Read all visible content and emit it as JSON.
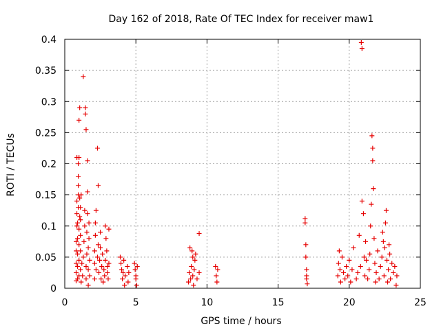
{
  "chart_data": {
    "type": "scatter",
    "title": "Day 162 of 2018, Rate Of TEC Index for receiver maw1",
    "xlabel": "GPS time / hours",
    "ylabel": "ROTI / TECUs",
    "xlim": [
      0,
      25
    ],
    "ylim": [
      0,
      0.4
    ],
    "xticks": [
      0,
      5,
      10,
      15,
      20,
      25
    ],
    "xtick_labels": [
      "0",
      "5",
      "10",
      "15",
      "20",
      "25"
    ],
    "yticks": [
      0,
      0.05,
      0.1,
      0.15,
      0.2,
      0.25,
      0.3,
      0.35,
      0.4
    ],
    "ytick_labels": [
      "0",
      "0.05",
      "0.1",
      "0.15",
      "0.2",
      "0.25",
      "0.3",
      "0.35",
      "0.4"
    ],
    "grid": true,
    "marker": "plus",
    "color": "#e60000",
    "series": [
      {
        "name": "ROTI",
        "points": [
          [
            0.8,
            0.012
          ],
          [
            0.8,
            0.025
          ],
          [
            0.8,
            0.04
          ],
          [
            0.8,
            0.06
          ],
          [
            0.8,
            0.075
          ],
          [
            0.85,
            0.1
          ],
          [
            0.85,
            0.12
          ],
          [
            0.85,
            0.14
          ],
          [
            0.85,
            0.21
          ],
          [
            0.9,
            0.015
          ],
          [
            0.9,
            0.035
          ],
          [
            0.9,
            0.055
          ],
          [
            0.9,
            0.08
          ],
          [
            0.9,
            0.105
          ],
          [
            0.95,
            0.13
          ],
          [
            0.95,
            0.15
          ],
          [
            0.95,
            0.165
          ],
          [
            0.95,
            0.18
          ],
          [
            0.95,
            0.2
          ],
          [
            1.0,
            0.02
          ],
          [
            1.0,
            0.045
          ],
          [
            1.0,
            0.07
          ],
          [
            1.0,
            0.095
          ],
          [
            1.0,
            0.21
          ],
          [
            1.0,
            0.27
          ],
          [
            1.05,
            0.29
          ],
          [
            1.05,
            0.115
          ],
          [
            1.05,
            0.145
          ],
          [
            1.1,
            0.03
          ],
          [
            1.1,
            0.06
          ],
          [
            1.1,
            0.085
          ],
          [
            1.1,
            0.11
          ],
          [
            1.1,
            0.13
          ],
          [
            1.15,
            0.15
          ],
          [
            1.15,
            0.01
          ],
          [
            1.2,
            0.04
          ],
          [
            1.25,
            0.02
          ],
          [
            1.3,
            0.34
          ],
          [
            1.3,
            0.05
          ],
          [
            1.35,
            0.075
          ],
          [
            1.4,
            0.1
          ],
          [
            1.4,
            0.125
          ],
          [
            1.45,
            0.28
          ],
          [
            1.45,
            0.29
          ],
          [
            1.5,
            0.255
          ],
          [
            1.5,
            0.015
          ],
          [
            1.5,
            0.035
          ],
          [
            1.55,
            0.055
          ],
          [
            1.55,
            0.09
          ],
          [
            1.6,
            0.12
          ],
          [
            1.6,
            0.155
          ],
          [
            1.6,
            0.205
          ],
          [
            1.65,
            0.005
          ],
          [
            1.65,
            0.03
          ],
          [
            1.65,
            0.065
          ],
          [
            1.7,
            0.08
          ],
          [
            1.7,
            0.105
          ],
          [
            1.75,
            0.045
          ],
          [
            1.75,
            0.02
          ],
          [
            2.1,
            0.015
          ],
          [
            2.1,
            0.04
          ],
          [
            2.1,
            0.06
          ],
          [
            2.15,
            0.085
          ],
          [
            2.15,
            0.105
          ],
          [
            2.2,
            0.125
          ],
          [
            2.2,
            0.03
          ],
          [
            2.3,
            0.05
          ],
          [
            2.3,
            0.225
          ],
          [
            2.35,
            0.165
          ],
          [
            2.35,
            0.07
          ],
          [
            2.4,
            0.025
          ],
          [
            2.45,
            0.045
          ],
          [
            2.5,
            0.09
          ],
          [
            2.5,
            0.065
          ],
          [
            2.55,
            0.015
          ],
          [
            2.6,
            0.035
          ],
          [
            2.65,
            0.055
          ],
          [
            2.7,
            0.01
          ],
          [
            2.75,
            0.03
          ],
          [
            2.8,
            0.02
          ],
          [
            2.85,
            0.045
          ],
          [
            2.85,
            0.1
          ],
          [
            2.9,
            0.08
          ],
          [
            2.95,
            0.06
          ],
          [
            3.0,
            0.035
          ],
          [
            3.0,
            0.025
          ],
          [
            3.05,
            0.015
          ],
          [
            3.1,
            0.04
          ],
          [
            3.1,
            0.095
          ],
          [
            3.9,
            0.05
          ],
          [
            3.95,
            0.04
          ],
          [
            4.0,
            0.03
          ],
          [
            4.05,
            0.015
          ],
          [
            4.1,
            0.025
          ],
          [
            4.15,
            0.045
          ],
          [
            4.2,
            0.005
          ],
          [
            4.25,
            0.02
          ],
          [
            4.4,
            0.035
          ],
          [
            4.45,
            0.01
          ],
          [
            4.5,
            0.025
          ],
          [
            4.9,
            0.04
          ],
          [
            4.95,
            0.03
          ],
          [
            5.0,
            0.015
          ],
          [
            5.0,
            0.02
          ],
          [
            5.05,
            0.005
          ],
          [
            5.1,
            0.035
          ],
          [
            8.7,
            0.01
          ],
          [
            8.75,
            0.025
          ],
          [
            8.8,
            0.065
          ],
          [
            8.85,
            0.015
          ],
          [
            8.9,
            0.035
          ],
          [
            8.95,
            0.06
          ],
          [
            9.0,
            0.05
          ],
          [
            9.0,
            0.02
          ],
          [
            9.05,
            0.005
          ],
          [
            9.1,
            0.03
          ],
          [
            9.15,
            0.045
          ],
          [
            9.2,
            0.055
          ],
          [
            9.3,
            0.015
          ],
          [
            9.45,
            0.088
          ],
          [
            9.45,
            0.025
          ],
          [
            10.6,
            0.035
          ],
          [
            10.65,
            0.02
          ],
          [
            10.7,
            0.01
          ],
          [
            10.75,
            0.03
          ],
          [
            16.9,
            0.105
          ],
          [
            16.9,
            0.112
          ],
          [
            16.95,
            0.07
          ],
          [
            16.95,
            0.05
          ],
          [
            17.0,
            0.03
          ],
          [
            17.0,
            0.02
          ],
          [
            17.0,
            0.015
          ],
          [
            17.05,
            0.007
          ],
          [
            19.2,
            0.02
          ],
          [
            19.25,
            0.04
          ],
          [
            19.3,
            0.06
          ],
          [
            19.35,
            0.03
          ],
          [
            19.4,
            0.01
          ],
          [
            19.5,
            0.05
          ],
          [
            19.6,
            0.025
          ],
          [
            19.7,
            0.015
          ],
          [
            19.8,
            0.035
          ],
          [
            19.9,
            0.02
          ],
          [
            20.0,
            0.045
          ],
          [
            20.1,
            0.01
          ],
          [
            20.2,
            0.03
          ],
          [
            20.3,
            0.065
          ],
          [
            20.5,
            0.015
          ],
          [
            20.6,
            0.025
          ],
          [
            20.7,
            0.085
          ],
          [
            20.8,
            0.035
          ],
          [
            20.85,
            0.395
          ],
          [
            20.9,
            0.385
          ],
          [
            20.9,
            0.14
          ],
          [
            21.0,
            0.12
          ],
          [
            21.05,
            0.05
          ],
          [
            21.1,
            0.02
          ],
          [
            21.15,
            0.075
          ],
          [
            21.2,
            0.045
          ],
          [
            21.3,
            0.015
          ],
          [
            21.4,
            0.03
          ],
          [
            21.45,
            0.055
          ],
          [
            21.5,
            0.1
          ],
          [
            21.55,
            0.135
          ],
          [
            21.6,
            0.245
          ],
          [
            21.65,
            0.225
          ],
          [
            21.65,
            0.205
          ],
          [
            21.7,
            0.16
          ],
          [
            21.75,
            0.08
          ],
          [
            21.8,
            0.04
          ],
          [
            21.85,
            0.01
          ],
          [
            21.9,
            0.025
          ],
          [
            22.0,
            0.06
          ],
          [
            22.1,
            0.015
          ],
          [
            22.2,
            0.035
          ],
          [
            22.3,
            0.05
          ],
          [
            22.35,
            0.09
          ],
          [
            22.4,
            0.075
          ],
          [
            22.45,
            0.02
          ],
          [
            22.5,
            0.065
          ],
          [
            22.55,
            0.105
          ],
          [
            22.6,
            0.125
          ],
          [
            22.65,
            0.045
          ],
          [
            22.7,
            0.01
          ],
          [
            22.75,
            0.03
          ],
          [
            22.8,
            0.07
          ],
          [
            22.85,
            0.055
          ],
          [
            22.9,
            0.015
          ],
          [
            23.0,
            0.04
          ],
          [
            23.1,
            0.025
          ],
          [
            23.2,
            0.035
          ],
          [
            23.3,
            0.005
          ],
          [
            23.35,
            0.02
          ]
        ]
      }
    ]
  }
}
